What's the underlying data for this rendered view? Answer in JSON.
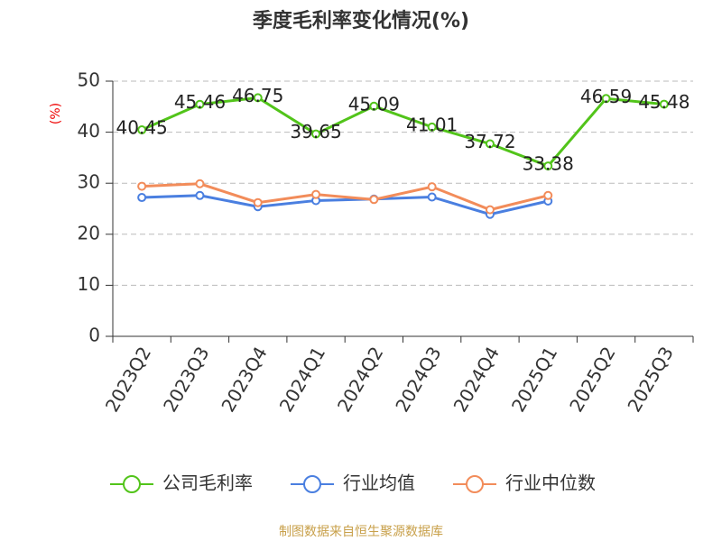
{
  "chart_data": {
    "type": "line",
    "title": "季度毛利率变化情况(%)",
    "y_label": "(%)",
    "categories": [
      "2023Q2",
      "2023Q3",
      "2023Q4",
      "2024Q1",
      "2024Q2",
      "2024Q3",
      "2024Q4",
      "2025Q1",
      "2025Q2",
      "2025Q3"
    ],
    "series": [
      {
        "name": "公司毛利率",
        "color": "#52c41a",
        "values": [
          40.45,
          45.46,
          46.75,
          39.65,
          45.09,
          41.01,
          37.72,
          33.38,
          46.59,
          45.48
        ]
      },
      {
        "name": "行业均值",
        "color": "#4a7fe0",
        "values": [
          27.2,
          27.6,
          25.4,
          26.6,
          26.9,
          27.3,
          23.9,
          26.5,
          null,
          null
        ]
      },
      {
        "name": "行业中位数",
        "color": "#f28c5a",
        "values": [
          29.4,
          29.9,
          26.2,
          27.8,
          26.8,
          29.3,
          24.8,
          27.6,
          null,
          null
        ]
      }
    ],
    "ylim": [
      0,
      50
    ],
    "yticks": [
      0,
      10,
      20,
      30,
      40,
      50
    ],
    "grid": true,
    "source": "制图数据来自恒生聚源数据库"
  }
}
